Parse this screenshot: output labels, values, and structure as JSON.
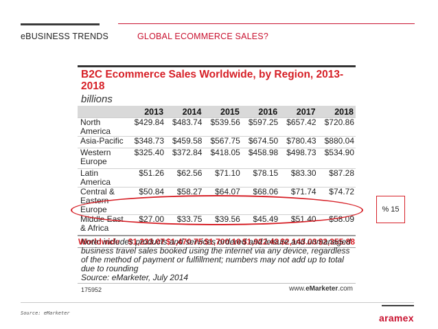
{
  "header": {
    "section_title": "eBUSINESS TRENDS",
    "slide_title": "GLOBAL ECOMMERCE SALES?"
  },
  "figure": {
    "title": "B2C Ecommerce Sales Worldwide, by Region, 2013-2018",
    "unit": "billions",
    "columns": [
      "2013",
      "2014",
      "2015",
      "2016",
      "2017",
      "2018"
    ],
    "rows": [
      {
        "region": "North America",
        "values": [
          "$429.84",
          "$483.74",
          "$539.56",
          "$597.25",
          "$657.42",
          "$720.86"
        ]
      },
      {
        "region": "Asia-Pacific",
        "values": [
          "$348.73",
          "$459.58",
          "$567.75",
          "$674.50",
          "$780.43",
          "$880.04"
        ]
      },
      {
        "region": "Western Europe",
        "values": [
          "$325.40",
          "$372.84",
          "$418.05",
          "$458.98",
          "$498.73",
          "$534.90"
        ]
      },
      {
        "region": "Latin America",
        "values": [
          "$51.26",
          "$62.56",
          "$71.10",
          "$78.15",
          "$83.30",
          "$87.28"
        ]
      },
      {
        "region": "Central & Eastern Europe",
        "values": [
          "$50.84",
          "$58.27",
          "$64.07",
          "$68.06",
          "$71.74",
          "$74.72"
        ]
      },
      {
        "region": "Middle East & Africa",
        "values": [
          "$27.00",
          "$33.75",
          "$39.56",
          "$45.49",
          "$51.40",
          "$58.09"
        ]
      }
    ],
    "worldwide": {
      "label": "Worldwide",
      "values": [
        "$1,233.07",
        "$1,470.75",
        "$1,700.10",
        "$1,922.43",
        "$2,143.03",
        "$2,355.88"
      ]
    },
    "note": "Note: includes products and services ordered and leisure and unmanaged business travel sales booked using the internet via any device, regardless of the method of payment or fulfillment; numbers may not add up to total due to rounding",
    "source": "Source: eMarketer, July 2014",
    "id": "175952",
    "brand_prefix": "www.",
    "brand_name": "eMarketer",
    "brand_suffix": ".com"
  },
  "callout": {
    "text": "% 15"
  },
  "footer": {
    "source": "Source: eMarketer",
    "logo_text": "aramex"
  },
  "colors": {
    "accent": "#c8102e",
    "chart_red": "#d61f26"
  }
}
